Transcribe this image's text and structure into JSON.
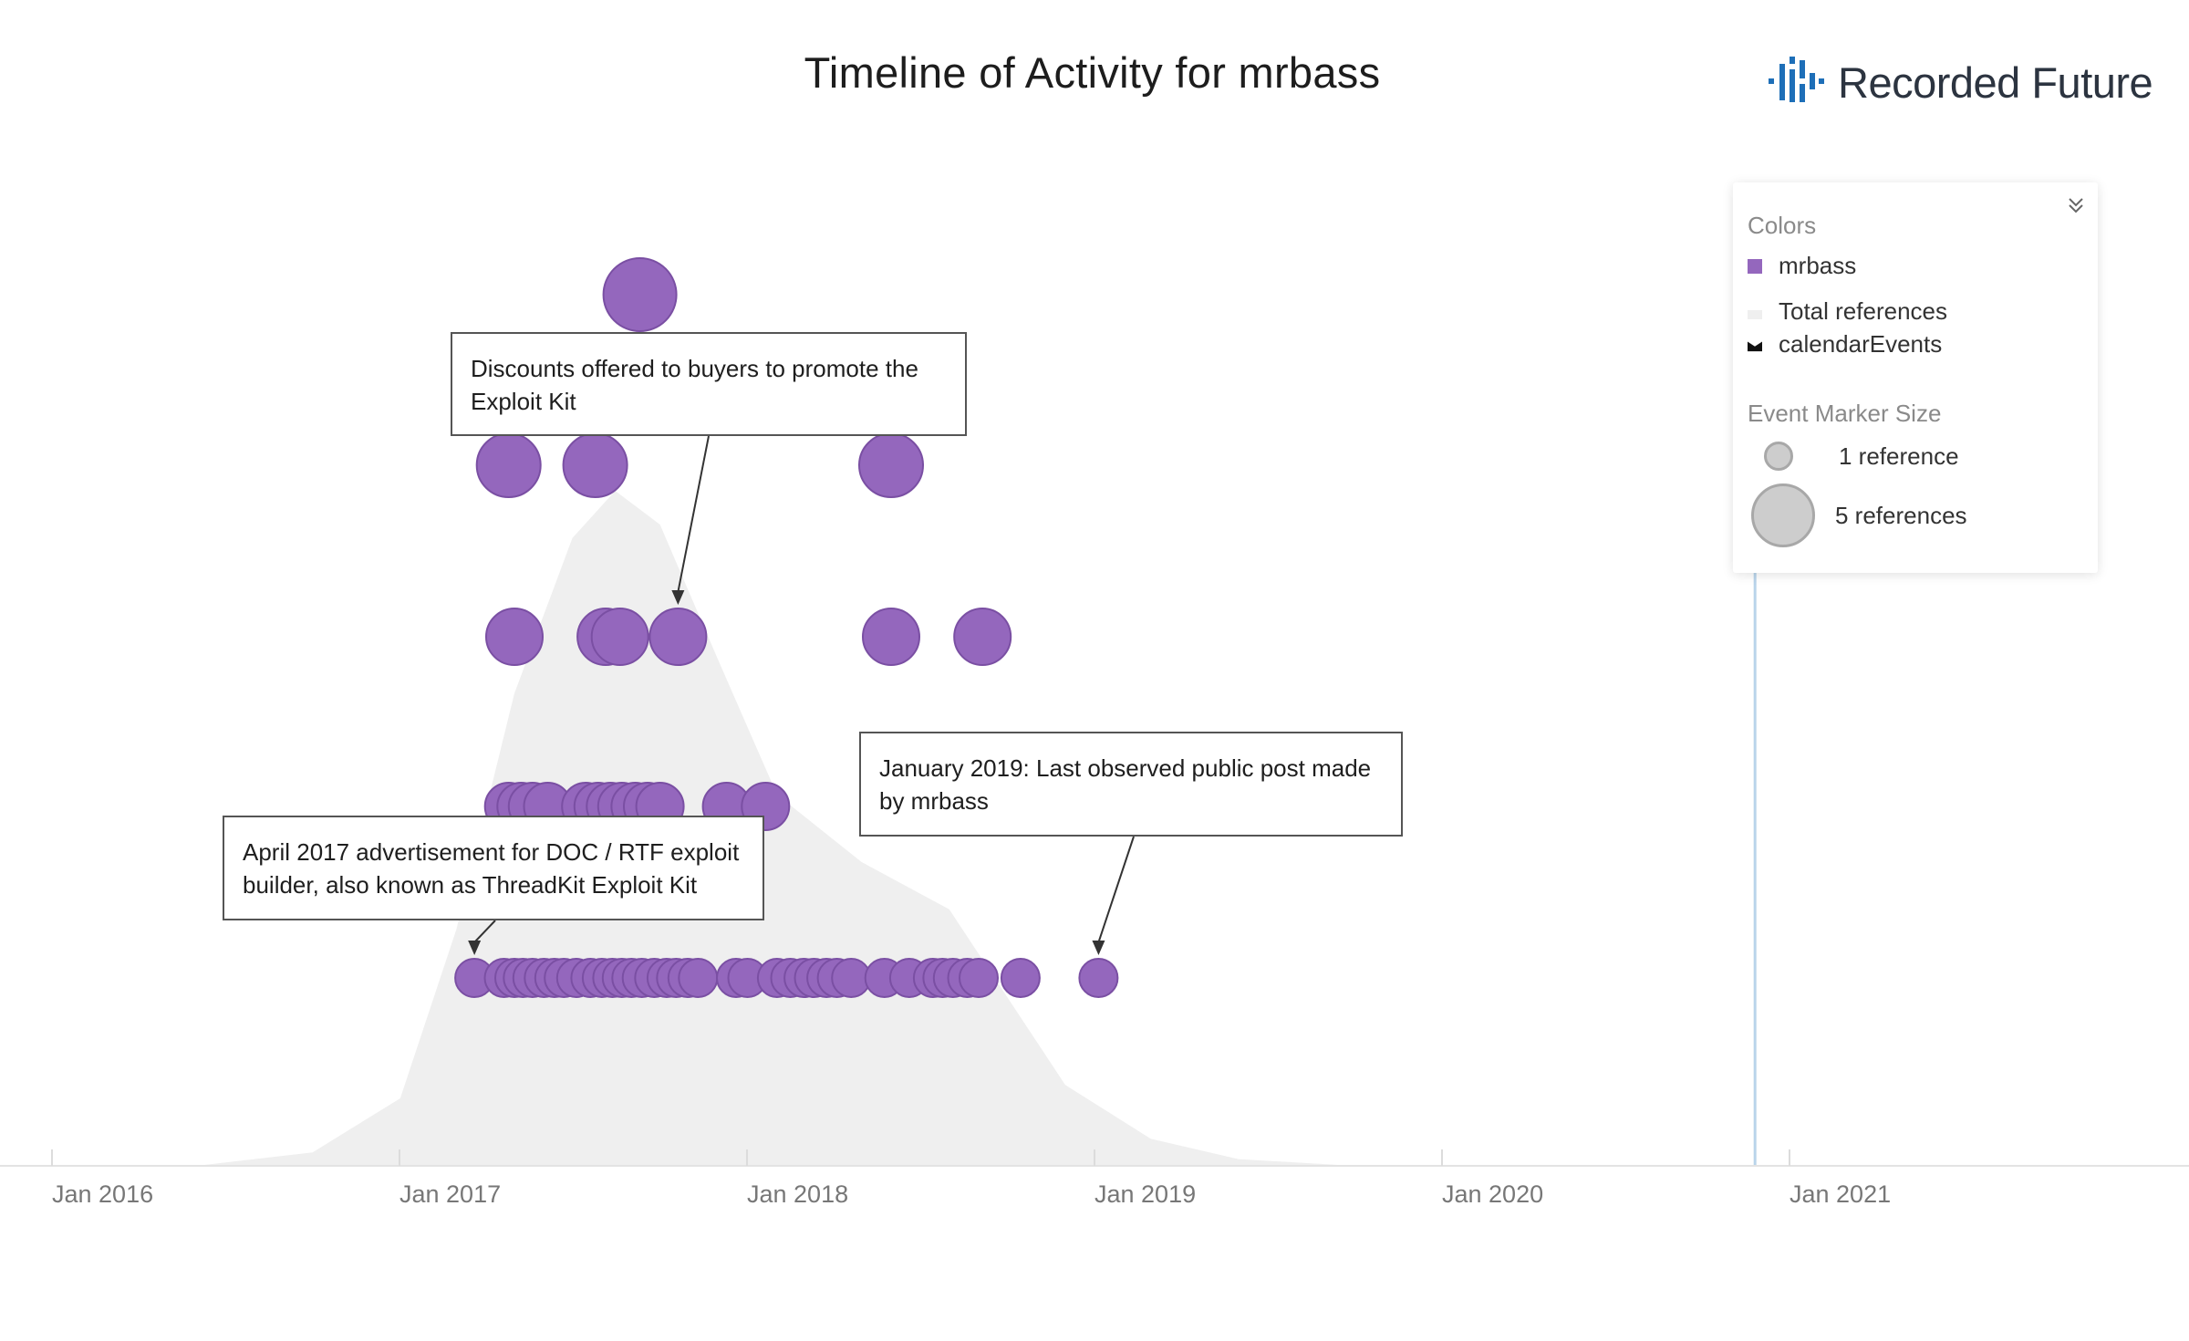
{
  "title": "Timeline of Activity for mrbass",
  "brand": {
    "name": "Recorded Future",
    "color": "#1e6fb8"
  },
  "legend": {
    "colors_label": "Colors",
    "items": [
      {
        "label": "mrbass",
        "color": "#9467bd"
      },
      {
        "label": "Total references",
        "color": "#efefef"
      },
      {
        "label": "calendarEvents",
        "color": "#111111"
      }
    ],
    "size_label": "Event Marker Size",
    "size_items": [
      "1 reference",
      "5 references"
    ],
    "collapse_icon": "chevron-double-down-icon"
  },
  "annotations": [
    {
      "text": "Discounts offered to buyers to promote the Exploit Kit",
      "target_date": "2017-10-20",
      "target_refs": 3
    },
    {
      "text": "January 2019: Last observed public post made by mrbass",
      "target_date": "2019-01-05",
      "target_refs": 1
    },
    {
      "text": "April 2017 advertisement for DOC / RTF exploit builder, also known as ThreadKit Exploit Kit",
      "target_date": "2017-03-20",
      "target_refs": 1
    }
  ],
  "chart_data": {
    "type": "scatter",
    "title": "Timeline of Activity for mrbass",
    "x_ticks": [
      "Jan 2016",
      "Jan 2017",
      "Jan 2018",
      "Jan 2019",
      "Jan 2020",
      "Jan 2021"
    ],
    "xlim": [
      "2015-12-25",
      "2021-11-15"
    ],
    "today_marker": "2020-11-25",
    "marker_color": "#9467bd",
    "background_area": {
      "name": "Total references",
      "color": "#efefef",
      "curve": [
        [
          "2016-06-01",
          0
        ],
        [
          "2016-10-01",
          0.02
        ],
        [
          "2017-01-01",
          0.1
        ],
        [
          "2017-03-01",
          0.35
        ],
        [
          "2017-05-01",
          0.7
        ],
        [
          "2017-07-01",
          0.93
        ],
        [
          "2017-08-15",
          1.0
        ],
        [
          "2017-10-01",
          0.95
        ],
        [
          "2017-12-01",
          0.75
        ],
        [
          "2018-02-01",
          0.55
        ],
        [
          "2018-05-01",
          0.45
        ],
        [
          "2018-08-01",
          0.38
        ],
        [
          "2018-10-01",
          0.25
        ],
        [
          "2018-12-01",
          0.12
        ],
        [
          "2019-03-01",
          0.04
        ],
        [
          "2019-06-01",
          0.01
        ],
        [
          "2019-10-01",
          0
        ]
      ]
    },
    "series": [
      {
        "name": "mrbass",
        "points": [
          [
            "2017-03-20",
            1
          ],
          [
            "2017-04-20",
            1
          ],
          [
            "2017-05-01",
            1
          ],
          [
            "2017-05-10",
            1
          ],
          [
            "2017-05-20",
            1
          ],
          [
            "2017-06-01",
            1
          ],
          [
            "2017-06-12",
            1
          ],
          [
            "2017-06-22",
            1
          ],
          [
            "2017-07-05",
            1
          ],
          [
            "2017-07-20",
            1
          ],
          [
            "2017-08-01",
            1
          ],
          [
            "2017-08-12",
            1
          ],
          [
            "2017-08-22",
            1
          ],
          [
            "2017-09-01",
            1
          ],
          [
            "2017-09-12",
            1
          ],
          [
            "2017-09-25",
            1
          ],
          [
            "2017-10-08",
            1
          ],
          [
            "2017-10-18",
            1
          ],
          [
            "2017-10-30",
            1
          ],
          [
            "2017-11-10",
            1
          ],
          [
            "2017-12-20",
            1
          ],
          [
            "2018-01-01",
            1
          ],
          [
            "2018-02-01",
            1
          ],
          [
            "2018-02-15",
            1
          ],
          [
            "2018-03-01",
            1
          ],
          [
            "2018-03-12",
            1
          ],
          [
            "2018-03-25",
            1
          ],
          [
            "2018-04-05",
            1
          ],
          [
            "2018-04-20",
            1
          ],
          [
            "2018-05-25",
            1
          ],
          [
            "2018-06-20",
            1
          ],
          [
            "2018-07-15",
            1
          ],
          [
            "2018-07-25",
            1
          ],
          [
            "2018-08-05",
            1
          ],
          [
            "2018-08-20",
            1
          ],
          [
            "2018-09-01",
            1
          ],
          [
            "2018-10-15",
            1
          ],
          [
            "2019-01-05",
            1
          ],
          [
            "2017-04-25",
            2
          ],
          [
            "2017-05-08",
            2
          ],
          [
            "2017-05-20",
            2
          ],
          [
            "2017-06-05",
            2
          ],
          [
            "2017-07-15",
            2
          ],
          [
            "2017-07-28",
            2
          ],
          [
            "2017-08-10",
            2
          ],
          [
            "2017-08-22",
            2
          ],
          [
            "2017-09-05",
            2
          ],
          [
            "2017-09-18",
            2
          ],
          [
            "2017-10-01",
            2
          ],
          [
            "2017-12-10",
            2
          ],
          [
            "2018-01-20",
            2
          ],
          [
            "2017-05-01",
            3
          ],
          [
            "2017-08-05",
            3
          ],
          [
            "2017-08-20",
            3
          ],
          [
            "2017-10-20",
            3
          ],
          [
            "2018-06-01",
            3
          ],
          [
            "2018-09-05",
            3
          ],
          [
            "2017-04-25",
            4
          ],
          [
            "2017-07-25",
            4
          ],
          [
            "2018-06-01",
            4
          ],
          [
            "2017-09-10",
            5
          ]
        ]
      }
    ]
  }
}
